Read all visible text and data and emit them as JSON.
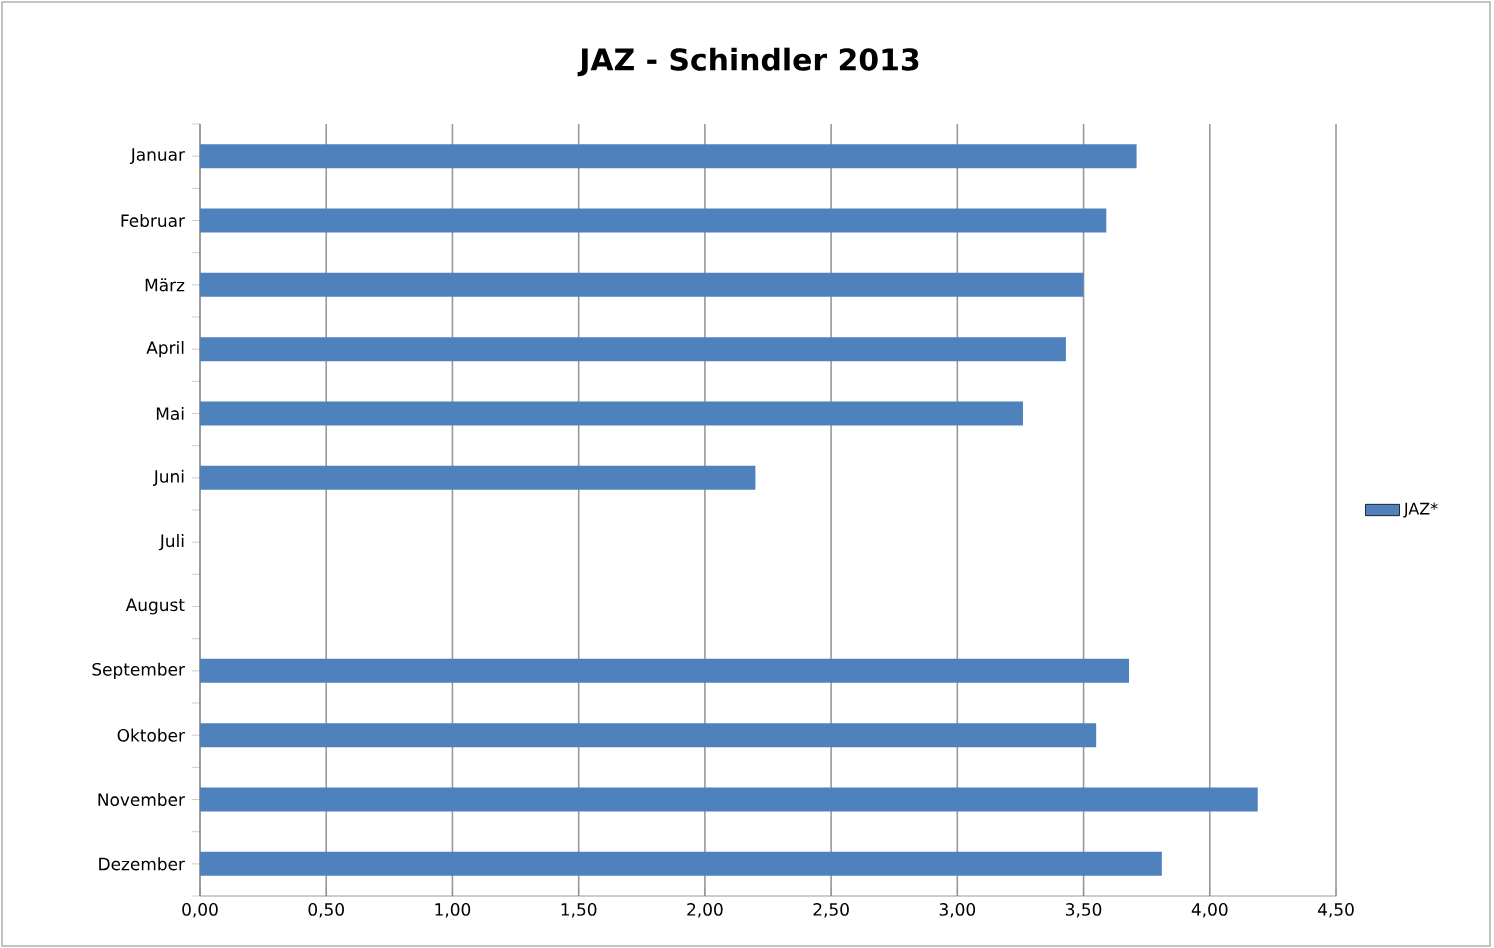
{
  "chart_data": {
    "type": "bar",
    "orientation": "horizontal",
    "title": "JAZ - Schindler 2013",
    "categories": [
      "Januar",
      "Februar",
      "März",
      "April",
      "Mai",
      "Juni",
      "Juli",
      "August",
      "September",
      "Oktober",
      "November",
      "Dezember"
    ],
    "series": [
      {
        "name": "JAZ*",
        "color": "#4f81bd",
        "values": [
          3.71,
          3.59,
          3.5,
          3.43,
          3.26,
          2.2,
          null,
          null,
          3.68,
          3.55,
          4.19,
          3.81
        ]
      }
    ],
    "xlim": [
      0,
      4.5
    ],
    "xticks": [
      {
        "value": 0,
        "label": "0,00"
      },
      {
        "value": 0.5,
        "label": "0,50"
      },
      {
        "value": 1,
        "label": "1,00"
      },
      {
        "value": 1.5,
        "label": "1,50"
      },
      {
        "value": 2,
        "label": "2,00"
      },
      {
        "value": 2.5,
        "label": "2,50"
      },
      {
        "value": 3,
        "label": "3,00"
      },
      {
        "value": 3.5,
        "label": "3,50"
      },
      {
        "value": 4,
        "label": "4,00"
      },
      {
        "value": 4.5,
        "label": "4,50"
      }
    ],
    "grid": "x",
    "legend": "right"
  }
}
